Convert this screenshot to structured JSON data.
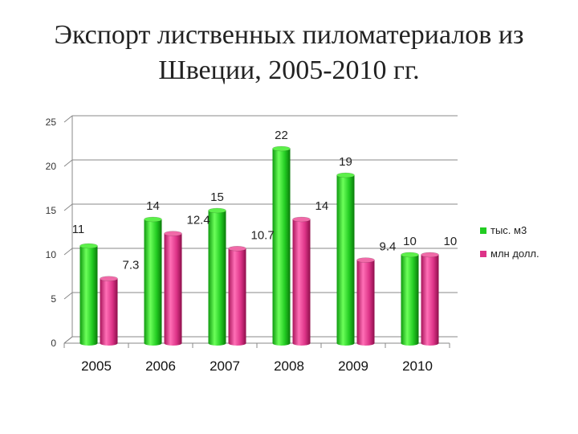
{
  "title_lines": [
    "Экспорт лиственных пиломатериалов из",
    "Швеции, 2005-2010 гг."
  ],
  "chart_data": {
    "type": "bar",
    "title": "Экспорт лиственных пиломатериалов из Швеции, 2005-2010 гг.",
    "categories": [
      "2005",
      "2006",
      "2007",
      "2008",
      "2009",
      "2010"
    ],
    "series": [
      {
        "name": "тыс. м3",
        "color": "#22cc22",
        "values": [
          11,
          14,
          15,
          22,
          19,
          10
        ],
        "labels": [
          "11",
          "14",
          "15",
          "22",
          "19",
          "10"
        ]
      },
      {
        "name": "млн долл.",
        "color": "#dd3388",
        "values": [
          7.3,
          12.4,
          10.7,
          14,
          9.4,
          10
        ],
        "labels": [
          "7.3",
          "12.4",
          "10.7",
          "14",
          "9.4",
          "10"
        ]
      }
    ],
    "ylim": [
      0,
      25
    ],
    "yticks": [
      0,
      5,
      10,
      15,
      20,
      25
    ],
    "grid": true,
    "legend": "right"
  }
}
